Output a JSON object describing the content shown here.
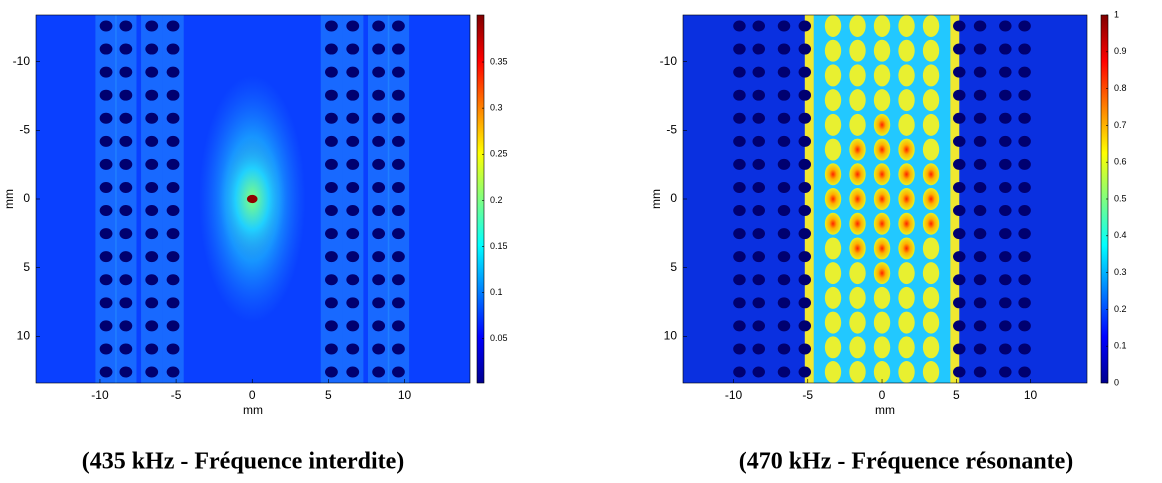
{
  "chart_data": [
    {
      "type": "heatmap",
      "x_label": "mm",
      "y_label": "mm",
      "xlim": [
        -14.2,
        14.3
      ],
      "ylim": [
        -13.4,
        13.4
      ],
      "y_reversed": true,
      "xticks": [
        -10,
        -5,
        0,
        5,
        10
      ],
      "yticks": [
        -10,
        -5,
        0,
        5,
        10
      ],
      "colormap": "jet",
      "clim": [
        0.002,
        0.401
      ],
      "cticks": [
        0.05,
        0.1,
        0.15,
        0.2,
        0.25,
        0.3,
        0.35
      ],
      "caption": "(435 kHz - Fréquence interdite)"
    },
    {
      "type": "heatmap",
      "x_label": "mm",
      "y_label": "mm",
      "xlim": [
        -13.4,
        13.8
      ],
      "ylim": [
        -13.4,
        13.4
      ],
      "y_reversed": true,
      "xticks": [
        -10,
        -5,
        0,
        5,
        10
      ],
      "yticks": [
        -10,
        -5,
        0,
        5,
        10
      ],
      "colormap": "jet",
      "clim": [
        0,
        1
      ],
      "cticks": [
        0,
        0.1,
        0.2,
        0.3,
        0.4,
        0.5,
        0.6,
        0.7,
        0.8,
        0.9,
        1
      ],
      "caption": "(470 kHz - Fréquence résonante)"
    }
  ]
}
